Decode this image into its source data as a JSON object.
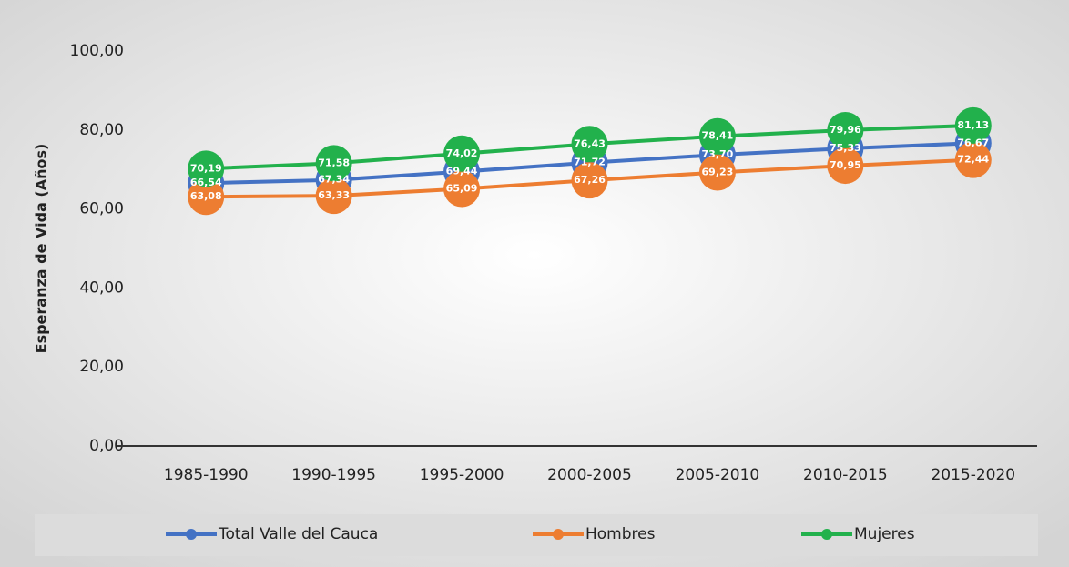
{
  "chart_data": {
    "type": "line",
    "y_label": "Esperanza de Vida (Años)",
    "categories": [
      "1985-1990",
      "1990-1995",
      "1995-2000",
      "2000-2005",
      "2005-2010",
      "2010-2015",
      "2015-2020"
    ],
    "series": [
      {
        "name": "Total Valle del Cauca",
        "color": "#4472c4",
        "values": [
          66.54,
          67.34,
          69.44,
          71.72,
          73.7,
          75.33,
          76.67
        ],
        "value_labels": [
          "66,54",
          "67,34",
          "69,44",
          "71,72",
          "73,70",
          "75,33",
          "76,67"
        ]
      },
      {
        "name": "Hombres",
        "color": "#ed7d31",
        "values": [
          63.08,
          63.33,
          65.09,
          67.26,
          69.23,
          70.95,
          72.44
        ],
        "value_labels": [
          "63,08",
          "63,33",
          "65,09",
          "67,26",
          "69,23",
          "70,95",
          "72,44"
        ]
      },
      {
        "name": "Mujeres",
        "color": "#22b14c",
        "values": [
          70.19,
          71.58,
          74.02,
          76.43,
          78.41,
          79.96,
          81.13
        ],
        "value_labels": [
          "70,19",
          "71,58",
          "74,02",
          "76,43",
          "78,41",
          "79,96",
          "81,13"
        ]
      }
    ],
    "ylim": [
      0,
      100
    ],
    "yticks": [
      {
        "value": 0,
        "label": "0,00"
      },
      {
        "value": 20,
        "label": "20,00"
      },
      {
        "value": 40,
        "label": "40,00"
      },
      {
        "value": 60,
        "label": "60,00"
      },
      {
        "value": 80,
        "label": "80,00"
      },
      {
        "value": 100,
        "label": "100,00"
      }
    ],
    "legend": "bottom"
  }
}
